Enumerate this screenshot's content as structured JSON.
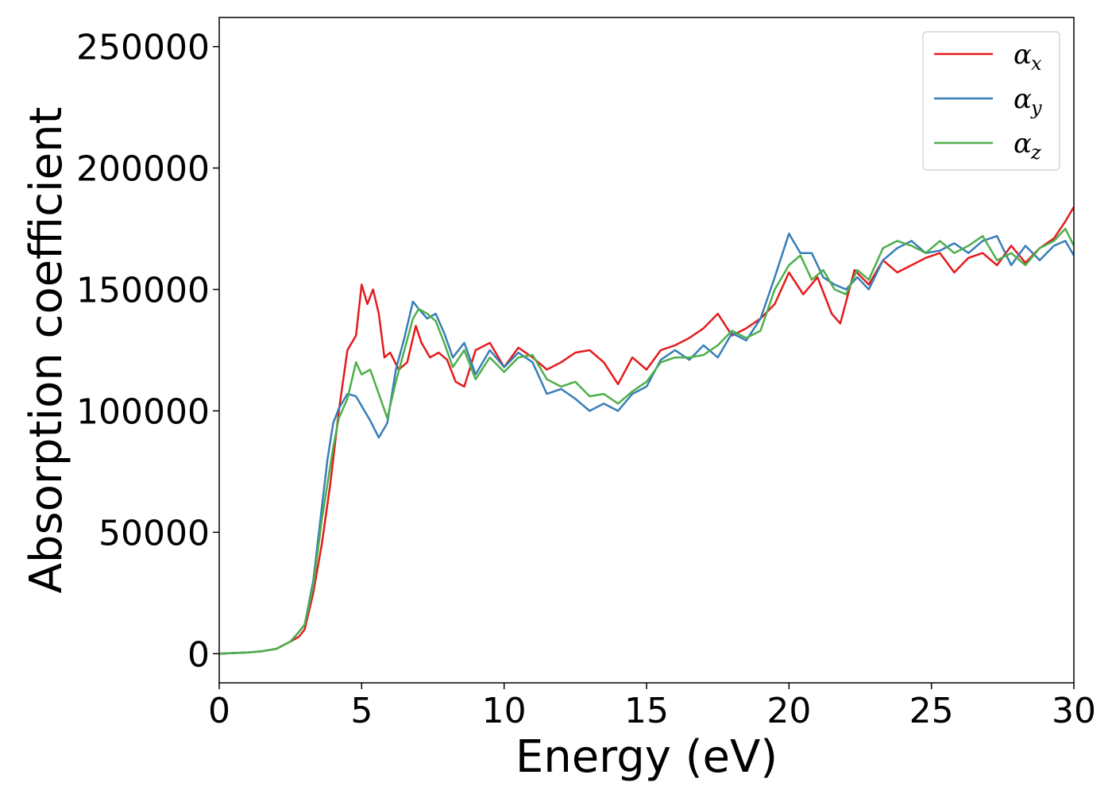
{
  "chart_data": {
    "type": "line",
    "title": "",
    "xlabel": "Energy (eV)",
    "ylabel": "Absorption coefficient",
    "xlim": [
      0,
      30
    ],
    "ylim": [
      -12000,
      262000
    ],
    "xticks": [
      0,
      5,
      10,
      15,
      20,
      25,
      30
    ],
    "xtick_labels": [
      "0",
      "5",
      "10",
      "15",
      "20",
      "25",
      "30"
    ],
    "yticks": [
      0,
      50000,
      100000,
      150000,
      200000,
      250000
    ],
    "ytick_labels": [
      "0",
      "50000",
      "100000",
      "150000",
      "200000",
      "250000"
    ],
    "grid": false,
    "legend_position": "top-right",
    "colors": {
      "alpha_x": "#e41a1c",
      "alpha_y": "#377eb8",
      "alpha_z": "#4daf4a"
    },
    "series": [
      {
        "name": "α_x",
        "legend_symbol": "α",
        "legend_subscript": "x",
        "color": "#e41a1c",
        "x": [
          0,
          1,
          1.5,
          2,
          2.5,
          2.8,
          3,
          3.3,
          3.6,
          3.9,
          4.2,
          4.5,
          4.8,
          5.0,
          5.2,
          5.4,
          5.6,
          5.8,
          6.0,
          6.3,
          6.6,
          6.9,
          7.1,
          7.4,
          7.7,
          8.0,
          8.3,
          8.6,
          9.0,
          9.5,
          10.0,
          10.5,
          11.0,
          11.5,
          12.0,
          12.5,
          13.0,
          13.5,
          14.0,
          14.5,
          15.0,
          15.5,
          16.0,
          16.5,
          17.0,
          17.5,
          18.0,
          18.5,
          19.0,
          19.5,
          20.0,
          20.5,
          21.0,
          21.5,
          21.8,
          22.3,
          22.8,
          23.3,
          23.8,
          24.3,
          24.8,
          25.3,
          25.8,
          26.3,
          26.8,
          27.3,
          27.8,
          28.3,
          28.8,
          29.3,
          29.7,
          30.0
        ],
        "y": [
          0,
          500,
          1000,
          2000,
          5000,
          7000,
          10000,
          25000,
          45000,
          70000,
          100000,
          125000,
          131000,
          152000,
          144000,
          150000,
          140000,
          122000,
          124000,
          117000,
          120000,
          135000,
          128000,
          122000,
          124000,
          121000,
          112000,
          110000,
          125000,
          128000,
          118000,
          126000,
          122000,
          117000,
          120000,
          124000,
          125000,
          120000,
          111000,
          122000,
          117000,
          125000,
          127000,
          130000,
          134000,
          140000,
          131000,
          134000,
          138000,
          144000,
          157000,
          148000,
          155000,
          140000,
          136000,
          158000,
          152000,
          162000,
          157000,
          160000,
          163000,
          165000,
          157000,
          163000,
          165000,
          160000,
          168000,
          161000,
          167000,
          171000,
          178000,
          184000
        ]
      },
      {
        "name": "α_y",
        "legend_symbol": "α",
        "legend_subscript": "y",
        "color": "#377eb8",
        "x": [
          0,
          1,
          1.5,
          2,
          2.5,
          2.8,
          3,
          3.3,
          3.6,
          3.8,
          4.0,
          4.2,
          4.5,
          4.8,
          5.0,
          5.3,
          5.6,
          5.9,
          6.2,
          6.5,
          6.8,
          7.0,
          7.3,
          7.6,
          7.9,
          8.2,
          8.6,
          9.0,
          9.5,
          10.0,
          10.5,
          11.0,
          11.5,
          12.0,
          12.5,
          13.0,
          13.5,
          14.0,
          14.5,
          15.0,
          15.5,
          16.0,
          16.5,
          17.0,
          17.5,
          18.0,
          18.5,
          19.0,
          19.5,
          20.0,
          20.4,
          20.8,
          21.2,
          21.6,
          22.0,
          22.4,
          22.8,
          23.3,
          23.8,
          24.3,
          24.8,
          25.3,
          25.8,
          26.3,
          26.8,
          27.3,
          27.8,
          28.3,
          28.8,
          29.3,
          29.7,
          30.0
        ],
        "y": [
          0,
          500,
          1000,
          2000,
          5000,
          9000,
          12000,
          30000,
          60000,
          80000,
          95000,
          101000,
          107000,
          106000,
          102000,
          96000,
          89000,
          95000,
          117000,
          130000,
          145000,
          142000,
          138000,
          140000,
          132000,
          122000,
          128000,
          115000,
          125000,
          118000,
          124000,
          120000,
          107000,
          109000,
          105000,
          100000,
          103000,
          100000,
          107000,
          110000,
          121000,
          125000,
          121000,
          127000,
          122000,
          132000,
          129000,
          138000,
          155000,
          173000,
          165000,
          165000,
          155000,
          152000,
          150000,
          155000,
          150000,
          162000,
          167000,
          170000,
          165000,
          166000,
          169000,
          165000,
          170000,
          172000,
          160000,
          168000,
          162000,
          168000,
          170000,
          164000
        ]
      },
      {
        "name": "α_z",
        "legend_symbol": "α",
        "legend_subscript": "z",
        "color": "#4daf4a",
        "x": [
          0,
          1,
          1.5,
          2,
          2.5,
          2.8,
          3,
          3.3,
          3.6,
          3.8,
          4.0,
          4.2,
          4.5,
          4.8,
          5.0,
          5.3,
          5.6,
          5.9,
          6.2,
          6.5,
          6.8,
          7.0,
          7.3,
          7.6,
          7.9,
          8.2,
          8.6,
          9.0,
          9.5,
          10.0,
          10.5,
          11.0,
          11.5,
          12.0,
          12.5,
          13.0,
          13.5,
          14.0,
          14.5,
          15.0,
          15.5,
          16.0,
          16.5,
          17.0,
          17.5,
          18.0,
          18.5,
          19.0,
          19.5,
          20.0,
          20.4,
          20.8,
          21.2,
          21.6,
          22.0,
          22.4,
          22.8,
          23.3,
          23.8,
          24.3,
          24.8,
          25.3,
          25.8,
          26.3,
          26.8,
          27.3,
          27.8,
          28.3,
          28.8,
          29.3,
          29.7,
          30.0
        ],
        "y": [
          0,
          500,
          1000,
          2000,
          5000,
          9000,
          12000,
          28000,
          55000,
          70000,
          85000,
          97000,
          105000,
          120000,
          115000,
          117000,
          107000,
          97000,
          112000,
          125000,
          138000,
          142000,
          140000,
          137000,
          128000,
          118000,
          125000,
          113000,
          122000,
          116000,
          122000,
          123000,
          113000,
          110000,
          112000,
          106000,
          107000,
          103000,
          108000,
          112000,
          120000,
          122000,
          122000,
          123000,
          127000,
          133000,
          130000,
          133000,
          150000,
          160000,
          164000,
          154000,
          158000,
          150000,
          148000,
          158000,
          154000,
          167000,
          170000,
          168000,
          165000,
          170000,
          165000,
          168000,
          172000,
          162000,
          165000,
          160000,
          167000,
          170000,
          175000,
          168000
        ]
      }
    ]
  }
}
